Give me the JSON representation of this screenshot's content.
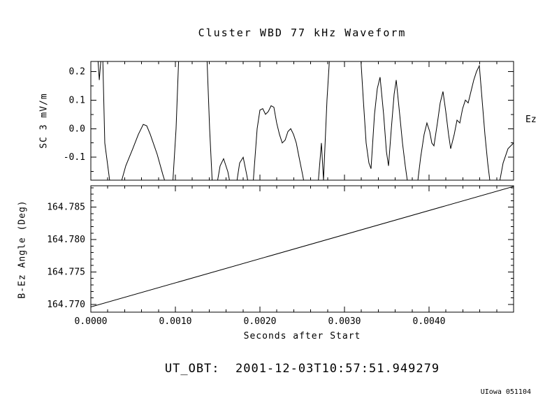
{
  "title": "Cluster WBD 77 kHz Waveform",
  "footer": {
    "ut_obt": "UT_OBT:  2001-12-03T10:57:51.949279",
    "credit": "UIowa 051104"
  },
  "colors": {
    "line": "#000000",
    "background": "#ffffff",
    "text": "#000000"
  },
  "chart_data": [
    {
      "type": "line",
      "panel": "waveform",
      "title": "Cluster WBD 77 kHz Waveform",
      "ylabel": "SC 3 mV/m",
      "right_label": "Ez",
      "xlabel": "",
      "xlim": [
        0.0,
        0.005
      ],
      "ylim": [
        -0.18,
        0.235
      ],
      "yticks": [
        -0.1,
        0.0,
        0.1,
        0.2
      ],
      "ytick_labels": [
        "-0.1",
        "0.0",
        "0.1",
        "0.2"
      ],
      "xticks": [
        0.0,
        0.001,
        0.002,
        0.003,
        0.004
      ],
      "xtick_labels": [],
      "grid": false,
      "points": [
        [
          0.0,
          0.26
        ],
        [
          8e-05,
          0.26
        ],
        [
          0.0001,
          0.17
        ],
        [
          0.000124,
          0.26
        ],
        [
          0.00014,
          0.26
        ],
        [
          0.000165,
          -0.05
        ],
        [
          0.000231,
          -0.2
        ],
        [
          0.000347,
          -0.2
        ],
        [
          0.000413,
          -0.13
        ],
        [
          0.000496,
          -0.07
        ],
        [
          0.000562,
          -0.02
        ],
        [
          0.00062,
          0.015
        ],
        [
          0.000661,
          0.01
        ],
        [
          0.000703,
          -0.02
        ],
        [
          0.000785,
          -0.09
        ],
        [
          0.000851,
          -0.16
        ],
        [
          0.000893,
          -0.2
        ],
        [
          0.000967,
          -0.2
        ],
        [
          0.001008,
          0.0
        ],
        [
          0.001041,
          0.26
        ],
        [
          0.001372,
          0.26
        ],
        [
          0.001405,
          0.0
        ],
        [
          0.001438,
          -0.2
        ],
        [
          0.001488,
          -0.2
        ],
        [
          0.001529,
          -0.13
        ],
        [
          0.00157,
          -0.105
        ],
        [
          0.00162,
          -0.15
        ],
        [
          0.001653,
          -0.2
        ],
        [
          0.001719,
          -0.2
        ],
        [
          0.00176,
          -0.12
        ],
        [
          0.001802,
          -0.1
        ],
        [
          0.001843,
          -0.16
        ],
        [
          0.001868,
          -0.2
        ],
        [
          0.001917,
          -0.2
        ],
        [
          0.001967,
          0.0
        ],
        [
          0.002,
          0.065
        ],
        [
          0.002033,
          0.07
        ],
        [
          0.002066,
          0.05
        ],
        [
          0.002099,
          0.06
        ],
        [
          0.002132,
          0.08
        ],
        [
          0.002165,
          0.075
        ],
        [
          0.002198,
          0.02
        ],
        [
          0.002231,
          -0.02
        ],
        [
          0.002264,
          -0.05
        ],
        [
          0.002298,
          -0.04
        ],
        [
          0.002331,
          -0.01
        ],
        [
          0.002364,
          0.0
        ],
        [
          0.002397,
          -0.02
        ],
        [
          0.00243,
          -0.05
        ],
        [
          0.002463,
          -0.1
        ],
        [
          0.002504,
          -0.16
        ],
        [
          0.002529,
          -0.2
        ],
        [
          0.002686,
          -0.2
        ],
        [
          0.002727,
          -0.05
        ],
        [
          0.002752,
          -0.18
        ],
        [
          0.002793,
          0.1
        ],
        [
          0.002826,
          0.26
        ],
        [
          0.00319,
          0.26
        ],
        [
          0.003223,
          0.1
        ],
        [
          0.003256,
          -0.05
        ],
        [
          0.003289,
          -0.12
        ],
        [
          0.003314,
          -0.14
        ],
        [
          0.003355,
          0.05
        ],
        [
          0.003388,
          0.14
        ],
        [
          0.003421,
          0.18
        ],
        [
          0.003463,
          0.05
        ],
        [
          0.003496,
          -0.08
        ],
        [
          0.003521,
          -0.13
        ],
        [
          0.003554,
          0.0
        ],
        [
          0.003587,
          0.12
        ],
        [
          0.003612,
          0.17
        ],
        [
          0.003653,
          0.05
        ],
        [
          0.003686,
          -0.05
        ],
        [
          0.003719,
          -0.13
        ],
        [
          0.003752,
          -0.2
        ],
        [
          0.00386,
          -0.2
        ],
        [
          0.003901,
          -0.1
        ],
        [
          0.003942,
          -0.02
        ],
        [
          0.003975,
          0.02
        ],
        [
          0.004008,
          -0.01
        ],
        [
          0.004033,
          -0.05
        ],
        [
          0.004058,
          -0.06
        ],
        [
          0.004099,
          0.02
        ],
        [
          0.004132,
          0.09
        ],
        [
          0.004165,
          0.13
        ],
        [
          0.004198,
          0.06
        ],
        [
          0.004231,
          -0.02
        ],
        [
          0.004256,
          -0.07
        ],
        [
          0.004298,
          -0.02
        ],
        [
          0.004331,
          0.03
        ],
        [
          0.004364,
          0.02
        ],
        [
          0.004397,
          0.07
        ],
        [
          0.00443,
          0.1
        ],
        [
          0.004463,
          0.09
        ],
        [
          0.004496,
          0.13
        ],
        [
          0.004529,
          0.17
        ],
        [
          0.004562,
          0.2
        ],
        [
          0.004595,
          0.22
        ],
        [
          0.004628,
          0.1
        ],
        [
          0.004661,
          -0.02
        ],
        [
          0.004694,
          -0.12
        ],
        [
          0.004727,
          -0.2
        ],
        [
          0.004826,
          -0.2
        ],
        [
          0.004876,
          -0.12
        ],
        [
          0.004934,
          -0.07
        ],
        [
          0.005,
          -0.05
        ]
      ]
    },
    {
      "type": "line",
      "panel": "angle",
      "ylabel": "B-Ez Angle (Deg)",
      "xlabel": "Seconds after Start",
      "xlim": [
        0.0,
        0.005
      ],
      "ylim": [
        164.7688,
        164.7883
      ],
      "yticks": [
        164.77,
        164.775,
        164.78,
        164.785
      ],
      "ytick_labels": [
        "164.770",
        "164.775",
        "164.780",
        "164.785"
      ],
      "xticks": [
        0.0,
        0.001,
        0.002,
        0.003,
        0.004
      ],
      "xtick_labels": [
        "0.0000",
        "0.0010",
        "0.0020",
        "0.0030",
        "0.0040"
      ],
      "grid": false,
      "points": [
        [
          0.0,
          164.7696
        ],
        [
          0.005,
          164.7882
        ]
      ]
    }
  ]
}
